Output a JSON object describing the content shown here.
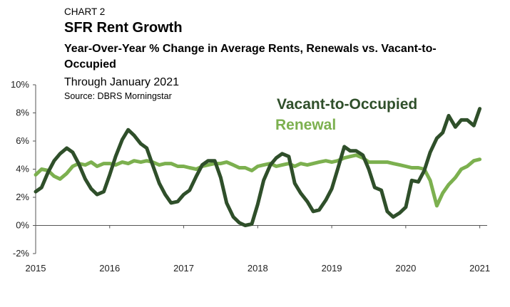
{
  "header": {
    "kicker": "CHART 2",
    "title": "SFR Rent Growth",
    "subtitle": "Year-Over-Year % Change in Average Rents, Renewals vs. Vacant-to-Occupied",
    "period": "Through January 2021",
    "source": "Source: DBRS Morningstar"
  },
  "colors": {
    "vacant": "#2f4f2a",
    "renewal": "#7cb04f",
    "axis": "#555555"
  },
  "chart_data": {
    "type": "line",
    "title": "SFR Rent Growth",
    "subtitle": "Year-Over-Year % Change in Average Rents, Renewals vs. Vacant-to-Occupied",
    "xlabel": "",
    "ylabel": "",
    "xlim": [
      2015,
      2021.1
    ],
    "ylim": [
      -2,
      10
    ],
    "y_ticks": [
      -2,
      0,
      2,
      4,
      6,
      8,
      10
    ],
    "y_tick_labels": [
      "-2%",
      "0%",
      "2%",
      "4%",
      "6%",
      "8%",
      "10%"
    ],
    "x_ticks": [
      2015,
      2016,
      2017,
      2018,
      2019,
      2020,
      2021
    ],
    "x_tick_labels": [
      "2015",
      "2016",
      "2017",
      "2018",
      "2019",
      "2020",
      "2021"
    ],
    "grid": false,
    "legend_placement": "top-right",
    "series": [
      {
        "name": "Vacant-to-Occupied",
        "color": "#2f4f2a",
        "x": [
          2015.0,
          2015.08,
          2015.17,
          2015.25,
          2015.33,
          2015.42,
          2015.5,
          2015.58,
          2015.67,
          2015.75,
          2015.83,
          2015.92,
          2016.0,
          2016.08,
          2016.17,
          2016.25,
          2016.33,
          2016.42,
          2016.5,
          2016.58,
          2016.67,
          2016.75,
          2016.83,
          2016.92,
          2017.0,
          2017.08,
          2017.17,
          2017.25,
          2017.33,
          2017.42,
          2017.5,
          2017.58,
          2017.67,
          2017.75,
          2017.83,
          2017.92,
          2018.0,
          2018.08,
          2018.17,
          2018.25,
          2018.33,
          2018.42,
          2018.5,
          2018.58,
          2018.67,
          2018.75,
          2018.83,
          2018.92,
          2019.0,
          2019.08,
          2019.17,
          2019.25,
          2019.33,
          2019.42,
          2019.5,
          2019.58,
          2019.67,
          2019.75,
          2019.83,
          2019.92,
          2020.0,
          2020.08,
          2020.17,
          2020.25,
          2020.33,
          2020.42,
          2020.5,
          2020.58,
          2020.67,
          2020.75,
          2020.83,
          2020.92,
          2021.0
        ],
        "values": [
          2.4,
          2.7,
          3.8,
          4.6,
          5.1,
          5.5,
          5.2,
          4.4,
          3.3,
          2.6,
          2.2,
          2.4,
          3.6,
          4.9,
          6.1,
          6.8,
          6.4,
          5.8,
          5.5,
          4.3,
          3.0,
          2.2,
          1.6,
          1.7,
          2.2,
          2.5,
          3.5,
          4.3,
          4.6,
          4.6,
          3.4,
          1.6,
          0.6,
          0.2,
          0.0,
          0.1,
          1.5,
          3.2,
          4.3,
          4.8,
          5.1,
          4.9,
          3.0,
          2.3,
          1.7,
          1.0,
          1.1,
          1.8,
          2.6,
          4.0,
          5.6,
          5.3,
          5.3,
          5.0,
          4.0,
          2.7,
          2.5,
          1.0,
          0.6,
          0.9,
          1.3,
          3.2,
          3.1,
          3.9,
          5.2,
          6.2,
          6.6,
          7.8,
          7.0,
          7.5,
          7.5,
          7.1,
          8.3
        ]
      },
      {
        "name": "Renewal",
        "color": "#7cb04f",
        "x": [
          2015.0,
          2015.08,
          2015.17,
          2015.25,
          2015.33,
          2015.42,
          2015.5,
          2015.58,
          2015.67,
          2015.75,
          2015.83,
          2015.92,
          2016.0,
          2016.08,
          2016.17,
          2016.25,
          2016.33,
          2016.42,
          2016.5,
          2016.58,
          2016.67,
          2016.75,
          2016.83,
          2016.92,
          2017.0,
          2017.08,
          2017.17,
          2017.25,
          2017.33,
          2017.42,
          2017.5,
          2017.58,
          2017.67,
          2017.75,
          2017.83,
          2017.92,
          2018.0,
          2018.08,
          2018.17,
          2018.25,
          2018.33,
          2018.42,
          2018.5,
          2018.58,
          2018.67,
          2018.75,
          2018.83,
          2018.92,
          2019.0,
          2019.08,
          2019.17,
          2019.25,
          2019.33,
          2019.42,
          2019.5,
          2019.58,
          2019.67,
          2019.75,
          2019.83,
          2019.92,
          2020.0,
          2020.08,
          2020.17,
          2020.25,
          2020.33,
          2020.42,
          2020.5,
          2020.58,
          2020.67,
          2020.75,
          2020.83,
          2020.92,
          2021.0
        ],
        "values": [
          3.6,
          4.0,
          3.9,
          3.5,
          3.3,
          3.7,
          4.2,
          4.4,
          4.3,
          4.5,
          4.2,
          4.4,
          4.4,
          4.3,
          4.5,
          4.4,
          4.6,
          4.5,
          4.6,
          4.5,
          4.3,
          4.4,
          4.4,
          4.2,
          4.2,
          4.1,
          4.0,
          4.2,
          4.3,
          4.4,
          4.4,
          4.5,
          4.3,
          4.1,
          4.1,
          3.9,
          4.2,
          4.3,
          4.4,
          4.2,
          4.3,
          4.4,
          4.2,
          4.4,
          4.3,
          4.4,
          4.5,
          4.6,
          4.5,
          4.6,
          4.8,
          4.9,
          5.0,
          4.8,
          4.5,
          4.5,
          4.5,
          4.5,
          4.4,
          4.3,
          4.2,
          4.1,
          4.1,
          4.0,
          3.2,
          1.4,
          2.3,
          2.9,
          3.4,
          4.0,
          4.2,
          4.6,
          4.7
        ]
      }
    ]
  }
}
